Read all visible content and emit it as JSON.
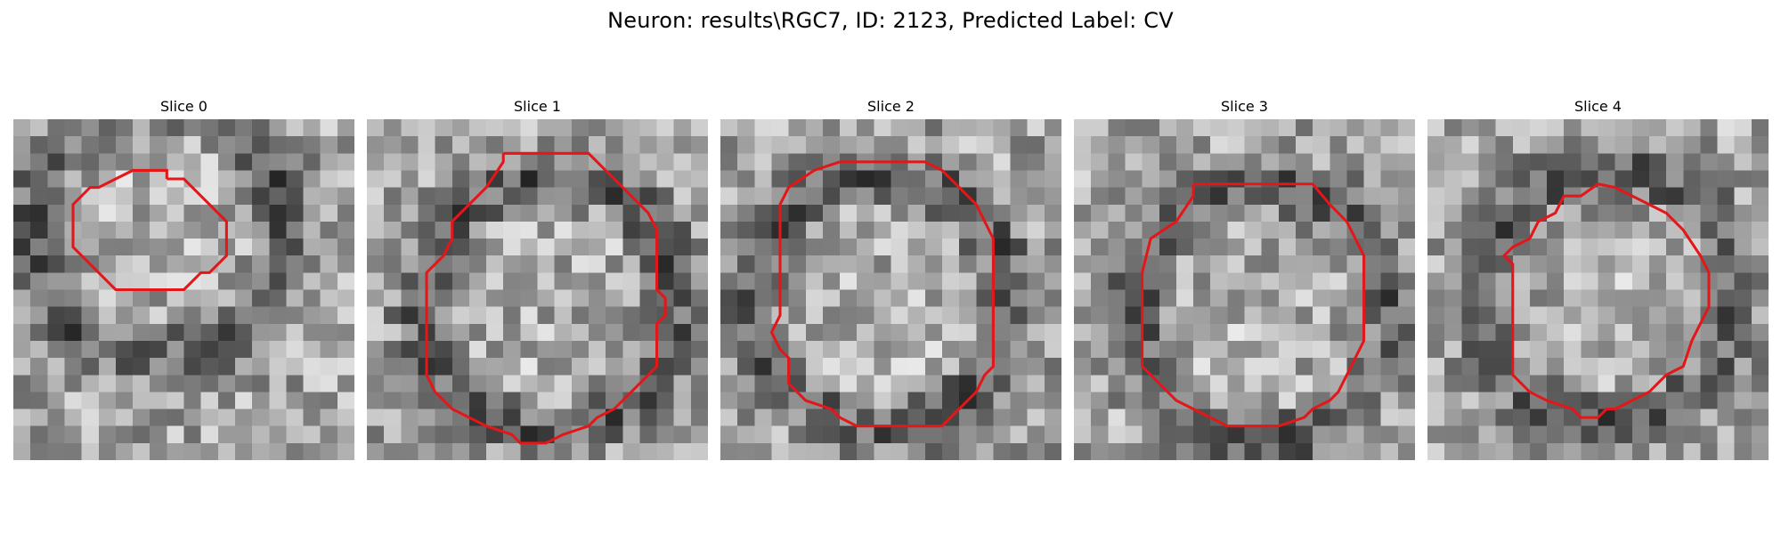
{
  "figure": {
    "title": "Neuron: results\\RGC7, ID: 2123, Predicted Label: CV"
  },
  "panels": [
    {
      "title": "Slice 0",
      "contour": [
        [
          9,
          3.5
        ],
        [
          10,
          3.5
        ],
        [
          11,
          4.5
        ],
        [
          11.5,
          5
        ],
        [
          12.5,
          6
        ],
        [
          12.5,
          8
        ],
        [
          12,
          8.5
        ],
        [
          11.5,
          9
        ],
        [
          11,
          9
        ],
        [
          10.5,
          9.5
        ],
        [
          10,
          10
        ],
        [
          6,
          10
        ],
        [
          5,
          9
        ],
        [
          4,
          8
        ],
        [
          3.5,
          7.5
        ],
        [
          3.5,
          5
        ],
        [
          4.5,
          4
        ],
        [
          5,
          4
        ],
        [
          6,
          3.5
        ],
        [
          7,
          3
        ],
        [
          9,
          3
        ]
      ]
    },
    {
      "title": "Slice 1",
      "contour": [
        [
          8,
          2
        ],
        [
          13,
          2
        ],
        [
          14,
          3
        ],
        [
          15,
          4
        ],
        [
          16,
          5
        ],
        [
          16.5,
          5.5
        ],
        [
          17,
          6.5
        ],
        [
          17,
          10
        ],
        [
          17.5,
          10.5
        ],
        [
          17.5,
          11.5
        ],
        [
          17,
          12
        ],
        [
          17,
          14.5
        ],
        [
          15.5,
          16
        ],
        [
          14.5,
          17
        ],
        [
          13.5,
          17.5
        ],
        [
          13,
          18
        ],
        [
          11.5,
          18.5
        ],
        [
          10.5,
          19
        ],
        [
          9,
          19
        ],
        [
          8.5,
          18.5
        ],
        [
          7,
          18
        ],
        [
          6,
          17.5
        ],
        [
          5,
          17
        ],
        [
          4,
          16
        ],
        [
          3.5,
          15
        ],
        [
          3.5,
          9
        ],
        [
          4.5,
          8
        ],
        [
          5,
          7
        ],
        [
          5,
          6
        ],
        [
          6,
          5
        ],
        [
          7,
          4
        ],
        [
          8,
          2.5
        ],
        [
          8,
          2
        ]
      ]
    },
    {
      "title": "Slice 2",
      "contour": [
        [
          7,
          2.5
        ],
        [
          12,
          2.5
        ],
        [
          13,
          3
        ],
        [
          14,
          4
        ],
        [
          15,
          5
        ],
        [
          15.5,
          6
        ],
        [
          16,
          7
        ],
        [
          16,
          14.5
        ],
        [
          15.5,
          15
        ],
        [
          15,
          16
        ],
        [
          14,
          17
        ],
        [
          13.5,
          17.5
        ],
        [
          13,
          18
        ],
        [
          8,
          18
        ],
        [
          7,
          17.5
        ],
        [
          6.5,
          17
        ],
        [
          5,
          16.5
        ],
        [
          4,
          15.5
        ],
        [
          4,
          14
        ],
        [
          3.5,
          13.5
        ],
        [
          3,
          12.5
        ],
        [
          3.5,
          11.5
        ],
        [
          3.5,
          5
        ],
        [
          4,
          4
        ],
        [
          5.5,
          3
        ],
        [
          7,
          2.5
        ]
      ]
    },
    {
      "title": "Slice 3",
      "contour": [
        [
          7,
          3.8
        ],
        [
          14,
          3.8
        ],
        [
          15,
          5
        ],
        [
          16,
          6
        ],
        [
          16.5,
          7
        ],
        [
          17,
          8
        ],
        [
          17,
          13
        ],
        [
          16.5,
          14
        ],
        [
          16,
          15
        ],
        [
          15.5,
          16
        ],
        [
          15,
          16.5
        ],
        [
          14,
          17
        ],
        [
          13.5,
          17.5
        ],
        [
          12,
          18
        ],
        [
          9,
          18
        ],
        [
          8,
          17.5
        ],
        [
          6,
          16.5
        ],
        [
          5,
          15.5
        ],
        [
          4,
          14.5
        ],
        [
          4,
          9
        ],
        [
          4.5,
          7
        ],
        [
          6,
          6
        ],
        [
          7,
          4.5
        ],
        [
          7,
          3.8
        ]
      ]
    },
    {
      "title": "Slice 4",
      "contour": [
        [
          10,
          3.8
        ],
        [
          11,
          4
        ],
        [
          12,
          4.5
        ],
        [
          13,
          5
        ],
        [
          14,
          5.5
        ],
        [
          15,
          6.5
        ],
        [
          16,
          8
        ],
        [
          16.5,
          9
        ],
        [
          16.5,
          11
        ],
        [
          16,
          12
        ],
        [
          15.5,
          13
        ],
        [
          15,
          14.5
        ],
        [
          14,
          15
        ],
        [
          13,
          16
        ],
        [
          12,
          16.5
        ],
        [
          11,
          17
        ],
        [
          10.5,
          17
        ],
        [
          10,
          17.5
        ],
        [
          9,
          17.5
        ],
        [
          8.5,
          17
        ],
        [
          7,
          16.5
        ],
        [
          6,
          16
        ],
        [
          5,
          15
        ],
        [
          5,
          8.5
        ],
        [
          4.5,
          8
        ],
        [
          5,
          7.5
        ],
        [
          6,
          7
        ],
        [
          6.5,
          6
        ],
        [
          7.5,
          5.5
        ],
        [
          8,
          4.5
        ],
        [
          9,
          4.5
        ],
        [
          10,
          3.8
        ]
      ]
    }
  ],
  "contour_color": "#e3171a",
  "image_grid_size": 20
}
